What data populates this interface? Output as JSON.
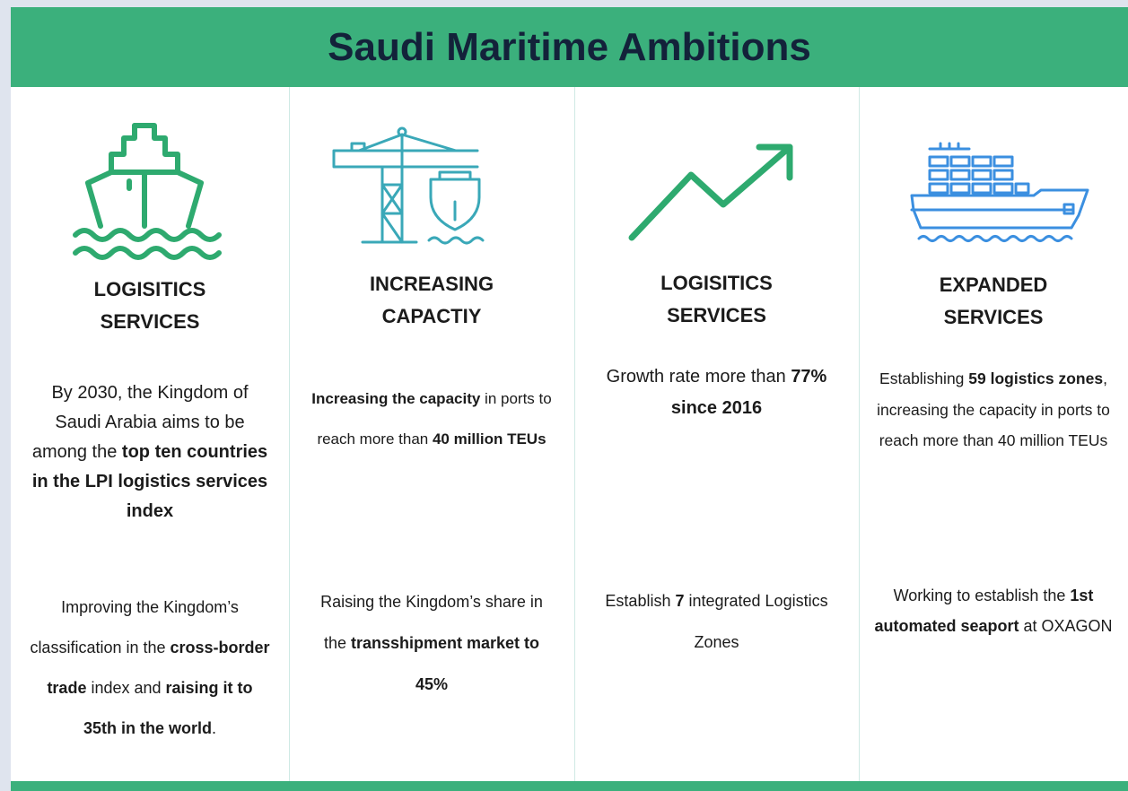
{
  "title": "Saudi Maritime Ambitions",
  "columns": [
    {
      "heading": "LOGISITICS SERVICES",
      "paragraphs": [
        [
          {
            "text": "By 2030, the Kingdom of Saudi Arabia aims to be among the ",
            "bold": false
          },
          {
            "text": "top ten countries in the LPI logistics services index",
            "bold": true
          }
        ],
        [
          {
            "text": "Improving the Kingdom’s classification in the ",
            "bold": false
          },
          {
            "text": "cross-border trade",
            "bold": true
          },
          {
            "text": " index and ",
            "bold": false
          },
          {
            "text": "raising it to 35th in the world",
            "bold": true
          },
          {
            "text": ".",
            "bold": false
          }
        ]
      ]
    },
    {
      "heading": "INCREASING CAPACTIY",
      "paragraphs": [
        [
          {
            "text": "Increasing the capacity",
            "bold": true
          },
          {
            "text": " in ports to reach more than ",
            "bold": false
          },
          {
            "text": "40 million TEUs",
            "bold": true
          }
        ],
        [
          {
            "text": "Raising the Kingdom’s share in the ",
            "bold": false
          },
          {
            "text": "transshipment market to 45%",
            "bold": true
          }
        ]
      ]
    },
    {
      "heading": "LOGISITICS SERVICES",
      "paragraphs": [
        [
          {
            "text": "Growth rate more than ",
            "bold": false
          },
          {
            "text": "77% since 2016",
            "bold": true
          }
        ],
        [
          {
            "text": "Establish ",
            "bold": false
          },
          {
            "text": "7",
            "bold": true
          },
          {
            "text": " integrated Logistics Zones",
            "bold": false
          }
        ]
      ]
    },
    {
      "heading": "EXPANDED SERVICES",
      "paragraphs": [
        [
          {
            "text": "Establishing ",
            "bold": false
          },
          {
            "text": "59 logistics zones",
            "bold": true
          },
          {
            "text": ", increasing the capacity in ports to reach more than 40 million TEUs",
            "bold": false
          }
        ],
        [
          {
            "text": "Working to establish the ",
            "bold": false
          },
          {
            "text": "1st automated seaport",
            "bold": true
          },
          {
            "text": " at OXAGON",
            "bold": false
          }
        ]
      ]
    }
  ]
}
